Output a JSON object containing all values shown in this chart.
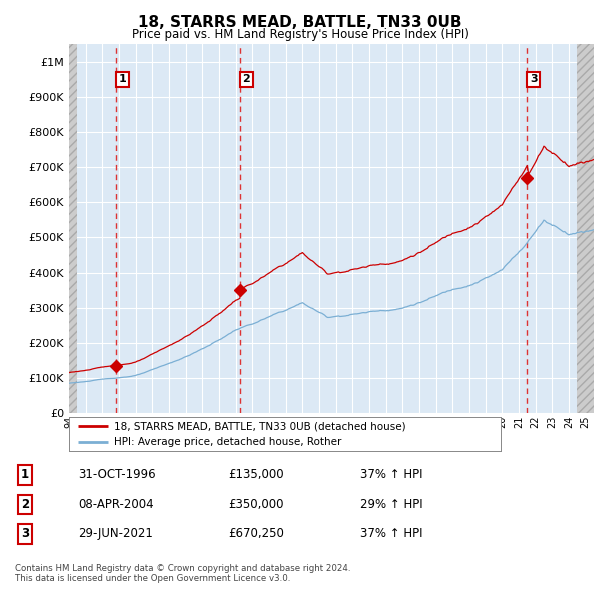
{
  "title": "18, STARRS MEAD, BATTLE, TN33 0UB",
  "subtitle": "Price paid vs. HM Land Registry's House Price Index (HPI)",
  "yticks": [
    0,
    100000,
    200000,
    300000,
    400000,
    500000,
    600000,
    700000,
    800000,
    900000,
    1000000
  ],
  "ylim": [
    0,
    1050000
  ],
  "sale_years": [
    1996.833,
    2004.25,
    2021.5
  ],
  "sale_prices": [
    135000,
    350000,
    670250
  ],
  "sale_labels": [
    "1",
    "2",
    "3"
  ],
  "sale_color": "#cc0000",
  "hpi_color": "#7bafd4",
  "vline_color": "#dd3333",
  "legend_label_red": "18, STARRS MEAD, BATTLE, TN33 0UB (detached house)",
  "legend_label_blue": "HPI: Average price, detached house, Rother",
  "table_rows": [
    [
      "1",
      "31-OCT-1996",
      "£135,000",
      "37% ↑ HPI"
    ],
    [
      "2",
      "08-APR-2004",
      "£350,000",
      "29% ↑ HPI"
    ],
    [
      "3",
      "29-JUN-2021",
      "£670,250",
      "37% ↑ HPI"
    ]
  ],
  "footer": "Contains HM Land Registry data © Crown copyright and database right 2024.\nThis data is licensed under the Open Government Licence v3.0.",
  "bg_color": "#ffffff",
  "plot_bg_color": "#dce9f5",
  "grid_color": "#ffffff",
  "xlim_start": 1994.0,
  "xlim_end": 2025.5
}
